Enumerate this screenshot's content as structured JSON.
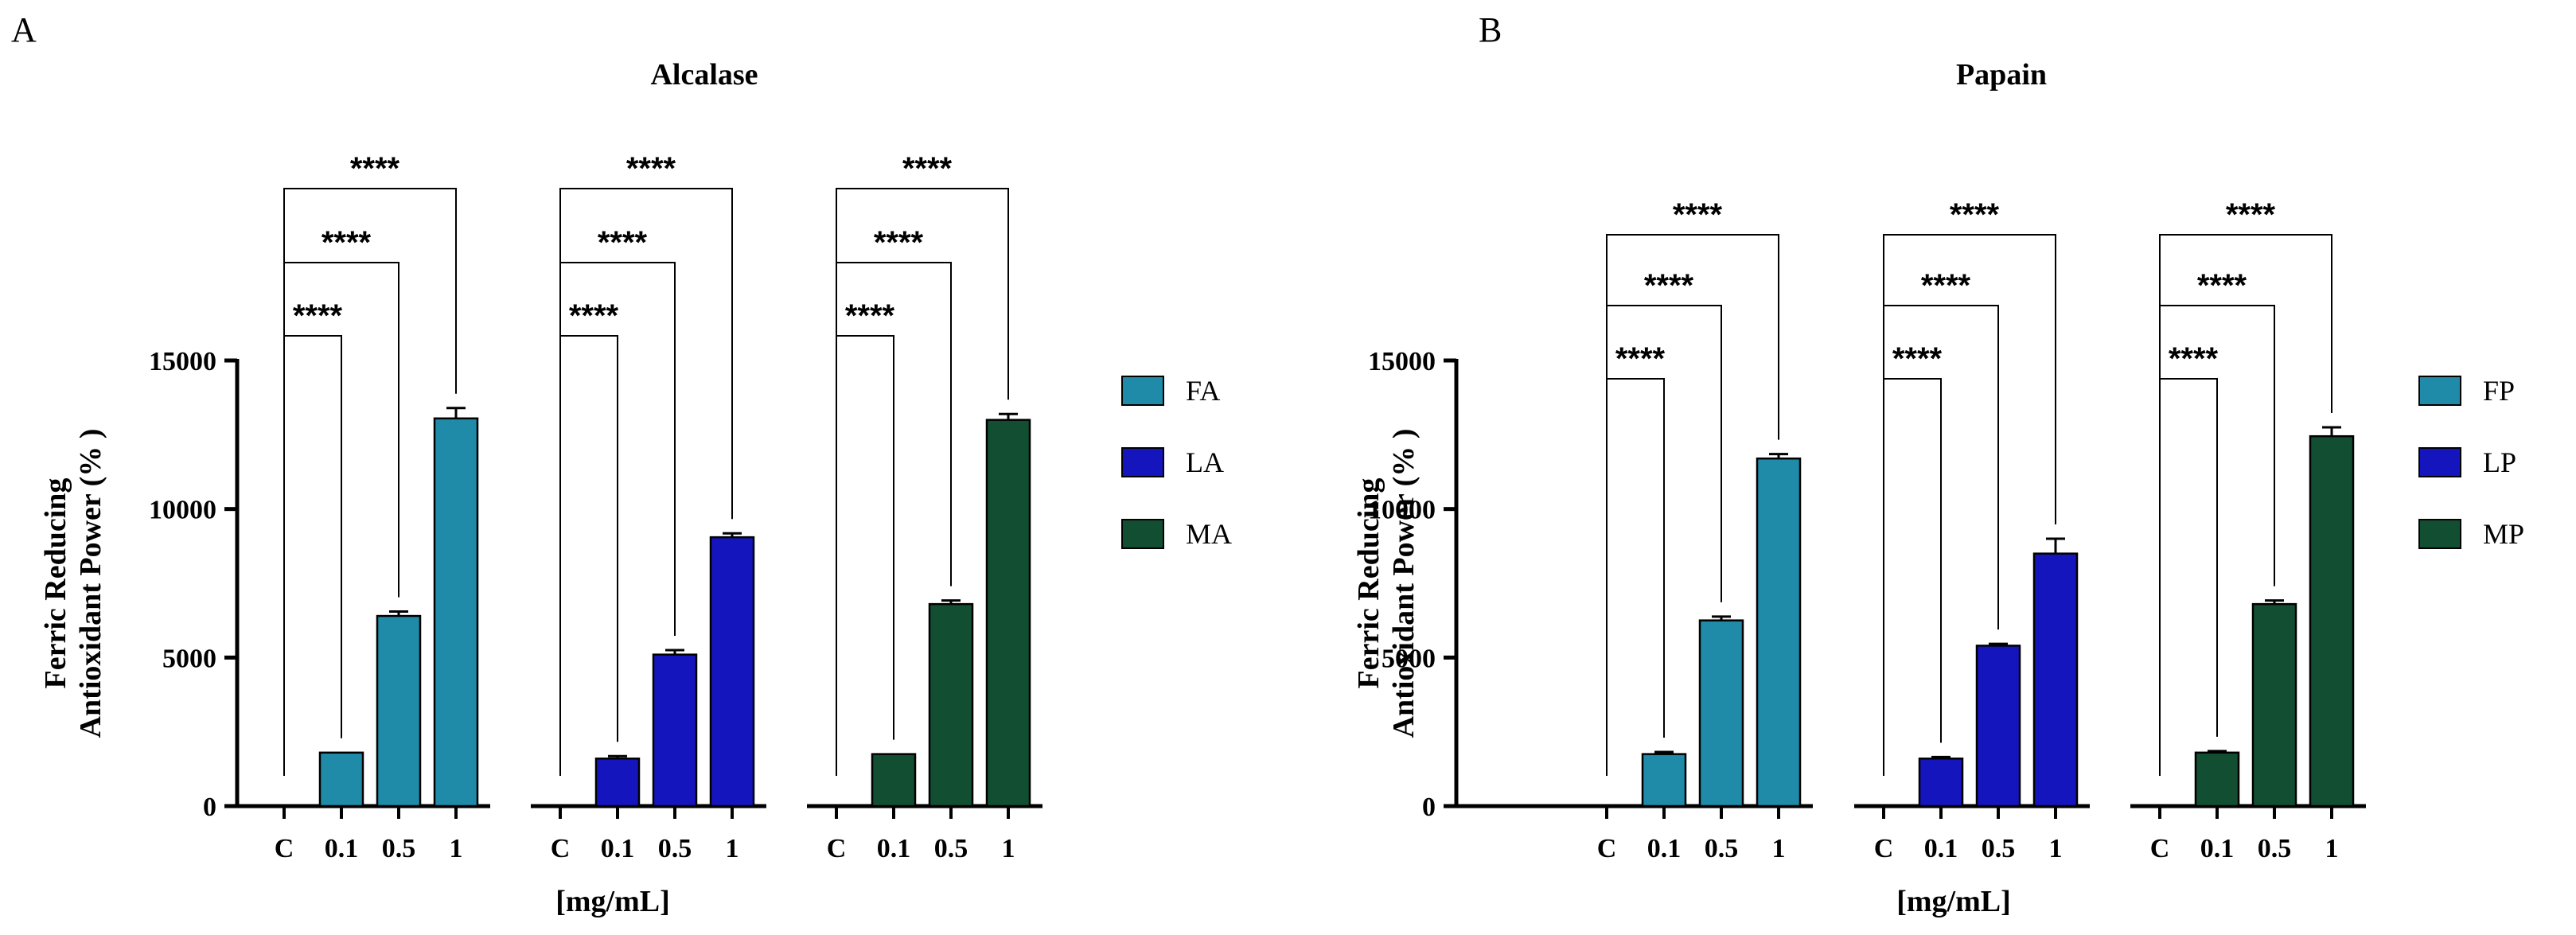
{
  "chart_data": [
    {
      "type": "bar",
      "panel_label": "A",
      "title": "Alcalase",
      "ylabel_line1": "Ferric Reducing",
      "ylabel_line2": "Antioxidant Power (% )",
      "xlabel": "[mg/mL]",
      "ylim": [
        0,
        15000
      ],
      "yticks": [
        0,
        5000,
        10000,
        15000
      ],
      "grid": false,
      "legend_position": "right",
      "groups": [
        {
          "name": "FA",
          "color": "#1F8BA8",
          "categories": [
            "C",
            "0.1",
            "0.5",
            "1"
          ],
          "values": [
            0,
            1800,
            6400,
            13050
          ],
          "errors": [
            0,
            0,
            150,
            350
          ],
          "significance": [
            {
              "from": "C",
              "to": "0.1",
              "label": "****"
            },
            {
              "from": "C",
              "to": "0.5",
              "label": "****"
            },
            {
              "from": "C",
              "to": "1",
              "label": "****"
            }
          ]
        },
        {
          "name": "LA",
          "color": "#1515BE",
          "categories": [
            "C",
            "0.1",
            "0.5",
            "1"
          ],
          "values": [
            0,
            1600,
            5100,
            9050
          ],
          "errors": [
            0,
            80,
            150,
            130
          ],
          "significance": [
            {
              "from": "C",
              "to": "0.1",
              "label": "****"
            },
            {
              "from": "C",
              "to": "0.5",
              "label": "****"
            },
            {
              "from": "C",
              "to": "1",
              "label": "****"
            }
          ]
        },
        {
          "name": "MA",
          "color": "#124F32",
          "categories": [
            "C",
            "0.1",
            "0.5",
            "1"
          ],
          "values": [
            0,
            1750,
            6800,
            13000
          ],
          "errors": [
            0,
            0,
            120,
            200
          ],
          "significance": [
            {
              "from": "C",
              "to": "0.1",
              "label": "****"
            },
            {
              "from": "C",
              "to": "0.5",
              "label": "****"
            },
            {
              "from": "C",
              "to": "1",
              "label": "****"
            }
          ]
        }
      ]
    },
    {
      "type": "bar",
      "panel_label": "B",
      "title": "Papain",
      "ylabel_line1": "Ferric Reducing",
      "ylabel_line2": "Antioxidant Power (% )",
      "xlabel": "[mg/mL]",
      "ylim": [
        0,
        15000
      ],
      "yticks": [
        0,
        5000,
        10000,
        15000
      ],
      "grid": false,
      "legend_position": "right",
      "groups": [
        {
          "name": "FP",
          "color": "#1F8BA8",
          "categories": [
            "C",
            "0.1",
            "0.5",
            "1"
          ],
          "values": [
            0,
            1750,
            6250,
            11700
          ],
          "errors": [
            0,
            70,
            130,
            150
          ],
          "significance": [
            {
              "from": "C",
              "to": "0.1",
              "label": "****"
            },
            {
              "from": "C",
              "to": "0.5",
              "label": "****"
            },
            {
              "from": "C",
              "to": "1",
              "label": "****"
            }
          ]
        },
        {
          "name": "LP",
          "color": "#1515BE",
          "categories": [
            "C",
            "0.1",
            "0.5",
            "1"
          ],
          "values": [
            0,
            1600,
            5400,
            8500
          ],
          "errors": [
            0,
            50,
            60,
            500
          ],
          "significance": [
            {
              "from": "C",
              "to": "0.1",
              "label": "****"
            },
            {
              "from": "C",
              "to": "0.5",
              "label": "****"
            },
            {
              "from": "C",
              "to": "1",
              "label": "****"
            }
          ]
        },
        {
          "name": "MP",
          "color": "#124F32",
          "categories": [
            "C",
            "0.1",
            "0.5",
            "1"
          ],
          "values": [
            0,
            1800,
            6800,
            12450
          ],
          "errors": [
            0,
            50,
            120,
            300
          ],
          "significance": [
            {
              "from": "C",
              "to": "0.1",
              "label": "****"
            },
            {
              "from": "C",
              "to": "0.5",
              "label": "****"
            },
            {
              "from": "C",
              "to": "1",
              "label": "****"
            }
          ]
        }
      ]
    }
  ]
}
